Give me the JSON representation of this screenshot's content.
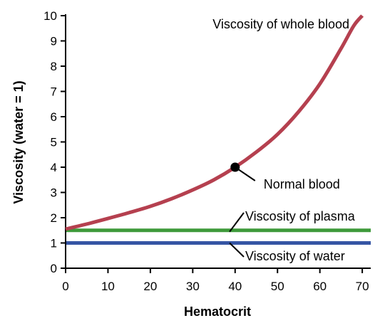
{
  "chart_data": {
    "type": "line",
    "title": "",
    "xlabel": "Hematocrit",
    "ylabel": "Viscosity (water = 1)",
    "xlim": [
      0,
      72
    ],
    "ylim": [
      0,
      10
    ],
    "x_ticks": [
      "0",
      "10",
      "20",
      "30",
      "40",
      "50",
      "60",
      "70"
    ],
    "y_ticks": [
      "0",
      "1",
      "2",
      "3",
      "4",
      "5",
      "6",
      "7",
      "8",
      "9",
      "10"
    ],
    "grid": false,
    "legend": "none",
    "series": [
      {
        "name": "Viscosity of whole blood",
        "color": "#b5404f",
        "x": [
          0,
          5,
          10,
          15,
          20,
          25,
          30,
          35,
          40,
          45,
          50,
          55,
          60,
          65,
          68,
          70
        ],
        "y": [
          1.55,
          1.75,
          1.97,
          2.2,
          2.45,
          2.75,
          3.1,
          3.5,
          4.0,
          4.6,
          5.3,
          6.2,
          7.3,
          8.7,
          9.6,
          10.0
        ]
      },
      {
        "name": "Viscosity of plasma",
        "color": "#3e9a3a",
        "x": [
          0,
          72
        ],
        "y": [
          1.5,
          1.5
        ]
      },
      {
        "name": "Viscosity of water",
        "color": "#3555a4",
        "x": [
          0,
          72
        ],
        "y": [
          1.0,
          1.0
        ]
      }
    ],
    "annotations": [
      {
        "text": "Normal blood",
        "x": 40,
        "y": 4.0
      }
    ]
  }
}
